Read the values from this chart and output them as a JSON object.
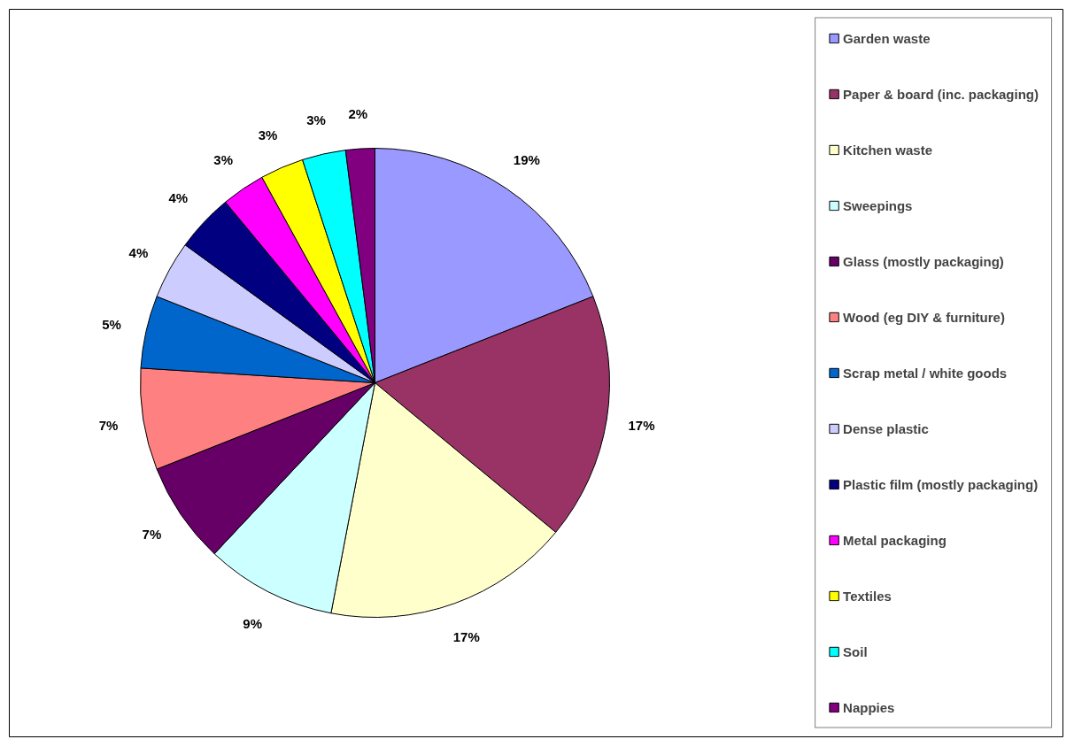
{
  "chart_data": {
    "type": "pie",
    "categories": [
      "Garden waste",
      "Paper & board (inc. packaging)",
      "Kitchen waste",
      "Sweepings",
      "Glass (mostly packaging)",
      "Wood (eg DIY & furniture)",
      "Scrap metal / white goods",
      "Dense plastic",
      "Plastic film (mostly packaging)",
      "Metal packaging",
      "Textiles",
      "Soil",
      "Nappies"
    ],
    "values": [
      19,
      17,
      17,
      9,
      7,
      7,
      5,
      4,
      4,
      3,
      3,
      3,
      2
    ],
    "value_labels": [
      "19%",
      "17%",
      "17%",
      "9%",
      "7%",
      "7%",
      "5%",
      "4%",
      "4%",
      "3%",
      "3%",
      "3%",
      "2%"
    ],
    "colors": [
      "#9999ff",
      "#993366",
      "#ffffcc",
      "#ccffff",
      "#660066",
      "#ff8080",
      "#0066cc",
      "#ccccff",
      "#000080",
      "#ff00ff",
      "#ffff00",
      "#00ffff",
      "#800080"
    ],
    "legend": "right"
  }
}
